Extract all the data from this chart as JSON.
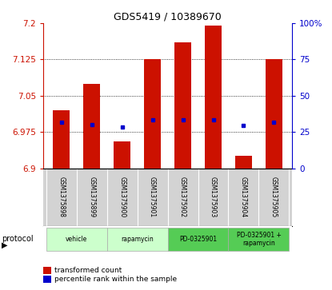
{
  "title": "GDS5419 / 10389670",
  "samples": [
    "GSM1375898",
    "GSM1375899",
    "GSM1375900",
    "GSM1375901",
    "GSM1375902",
    "GSM1375903",
    "GSM1375904",
    "GSM1375905"
  ],
  "bar_tops": [
    7.02,
    7.075,
    6.955,
    7.125,
    7.16,
    7.195,
    6.925,
    7.125
  ],
  "bar_bottom": 6.9,
  "percentile_values": [
    6.995,
    6.99,
    6.985,
    7.0,
    7.0,
    7.0,
    6.988,
    6.995
  ],
  "ylim_left": [
    6.9,
    7.2
  ],
  "yticks_left": [
    6.9,
    6.975,
    7.05,
    7.125,
    7.2
  ],
  "ytick_labels_left": [
    "6.9",
    "6.975",
    "7.05",
    "7.125",
    "7.2"
  ],
  "ylim_right": [
    0,
    100
  ],
  "yticks_right": [
    0,
    25,
    50,
    75,
    100
  ],
  "ytick_labels_right": [
    "0",
    "25",
    "50",
    "75",
    "100%"
  ],
  "bar_color": "#cc1100",
  "dot_color": "#0000cc",
  "left_axis_color": "#cc1100",
  "right_axis_color": "#0000cc",
  "protocols": [
    {
      "label": "vehicle",
      "start": 0,
      "end": 1,
      "color": "#ccffcc"
    },
    {
      "label": "rapamycin",
      "start": 2,
      "end": 3,
      "color": "#ccffcc"
    },
    {
      "label": "PD-0325901",
      "start": 4,
      "end": 5,
      "color": "#55cc55"
    },
    {
      "label": "PD-0325901 +\nrapamycin",
      "start": 6,
      "end": 7,
      "color": "#55cc55"
    }
  ],
  "legend_items": [
    {
      "color": "#cc1100",
      "label": "transformed count"
    },
    {
      "color": "#0000cc",
      "label": "percentile rank within the sample"
    }
  ],
  "bar_width": 0.55,
  "gridlines": [
    6.975,
    7.05,
    7.125
  ],
  "gsm_bg_color": "#d3d3d3"
}
